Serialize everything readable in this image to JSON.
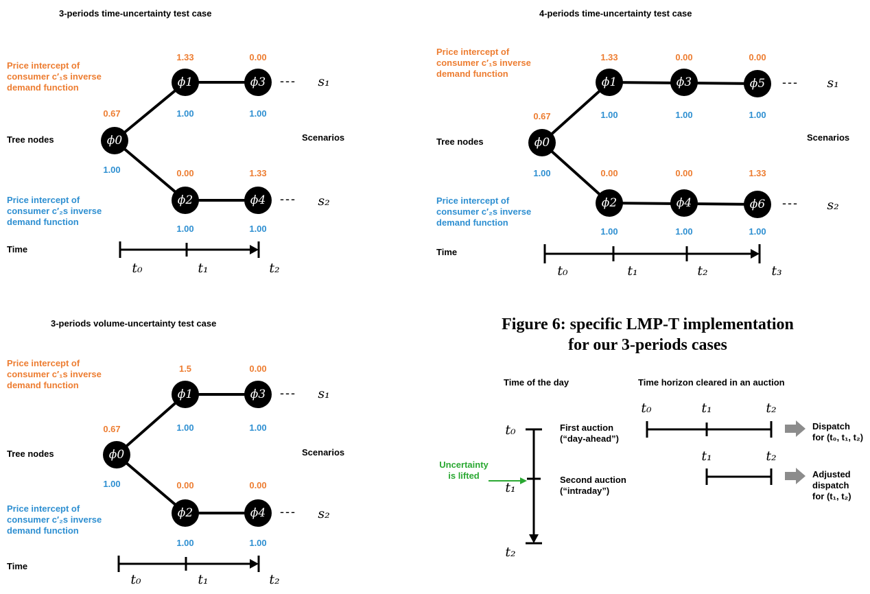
{
  "panels": [
    {
      "title": "3-periods time-uncertainty test case",
      "orange_label": [
        "Price intercept of",
        "consumer c′₁s inverse",
        "demand function"
      ],
      "blue_label": [
        "Price intercept of",
        "consumer c′₂s inverse",
        "demand function"
      ],
      "tree_nodes_label": "Tree nodes",
      "scenarios_label": "Scenarios",
      "time_label": "Time",
      "nodes": [
        "ϕ0",
        "ϕ1",
        "ϕ2",
        "ϕ3",
        "ϕ4"
      ],
      "root": {
        "orange": "0.67",
        "blue": "1.00"
      },
      "upper": [
        {
          "orange": "1.33",
          "blue": "1.00"
        },
        {
          "orange": "0.00",
          "blue": "1.00"
        }
      ],
      "lower": [
        {
          "orange": "0.00",
          "blue": "1.00"
        },
        {
          "orange": "1.33",
          "blue": "1.00"
        }
      ],
      "scenarios": [
        "s₁",
        "s₂"
      ],
      "times": [
        "t₀",
        "t₁",
        "t₂"
      ]
    },
    {
      "title": "4-periods time-uncertainty test case",
      "orange_label": [
        "Price intercept of",
        "consumer c′₁s inverse",
        "demand function"
      ],
      "blue_label": [
        "Price intercept of",
        "consumer c′₂s inverse",
        "demand function"
      ],
      "tree_nodes_label": "Tree nodes",
      "scenarios_label": "Scenarios",
      "time_label": "Time",
      "nodes": [
        "ϕ0",
        "ϕ1",
        "ϕ2",
        "ϕ3",
        "ϕ4",
        "ϕ5",
        "ϕ6"
      ],
      "root": {
        "orange": "0.67",
        "blue": "1.00"
      },
      "upper": [
        {
          "orange": "1.33",
          "blue": "1.00"
        },
        {
          "orange": "0.00",
          "blue": "1.00"
        },
        {
          "orange": "0.00",
          "blue": "1.00"
        }
      ],
      "lower": [
        {
          "orange": "0.00",
          "blue": "1.00"
        },
        {
          "orange": "0.00",
          "blue": "1.00"
        },
        {
          "orange": "1.33",
          "blue": "1.00"
        }
      ],
      "scenarios": [
        "s₁",
        "s₂"
      ],
      "times": [
        "t₀",
        "t₁",
        "t₂",
        "t₃"
      ]
    },
    {
      "title": "3-periods volume-uncertainty test case",
      "orange_label": [
        "Price intercept of",
        "consumer c′₁s inverse",
        "demand function"
      ],
      "blue_label": [
        "Price intercept of",
        "consumer c′₂s inverse",
        "demand function"
      ],
      "tree_nodes_label": "Tree nodes",
      "scenarios_label": "Scenarios",
      "time_label": "Time",
      "nodes": [
        "ϕ0",
        "ϕ1",
        "ϕ2",
        "ϕ3",
        "ϕ4"
      ],
      "root": {
        "orange": "0.67",
        "blue": "1.00"
      },
      "upper": [
        {
          "orange": "1.5",
          "blue": "1.00"
        },
        {
          "orange": "0.00",
          "blue": "1.00"
        }
      ],
      "lower": [
        {
          "orange": "0.00",
          "blue": "1.00"
        },
        {
          "orange": "0.00",
          "blue": "1.00"
        }
      ],
      "scenarios": [
        "s₁",
        "s₂"
      ],
      "times": [
        "t₀",
        "t₁",
        "t₂"
      ]
    }
  ],
  "figure6": {
    "title_line1": "Figure 6: specific LMP-T implementation",
    "title_line2": "for our 3-periods cases",
    "time_of_day_label": "Time of the day",
    "horizon_label": "Time horizon cleared in an auction",
    "first_auction": [
      "First auction",
      "(“day-ahead”)"
    ],
    "second_auction": [
      "Second auction",
      "(“intraday”)"
    ],
    "uncertainty": [
      "Uncertainty",
      "is lifted"
    ],
    "dispatch1": [
      "Dispatch",
      "for (t₀, t₁, t₂)"
    ],
    "dispatch2": [
      "Adjusted",
      "dispatch",
      "for (t₁, t₂)"
    ],
    "day_times": [
      "t₀",
      "t₁",
      "t₂"
    ],
    "horizon1_times": [
      "t₀",
      "t₁",
      "t₂"
    ],
    "horizon2_times": [
      "t₁",
      "t₂"
    ],
    "colors": {
      "green": "#2aa832",
      "arrow_gray": "#8c8c8c",
      "orange": "#ed7d31",
      "blue": "#2e8fd1"
    }
  }
}
